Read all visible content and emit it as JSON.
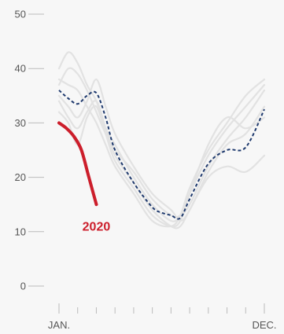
{
  "chart_data": {
    "type": "line",
    "title": "",
    "xlabel": "",
    "ylabel": "",
    "ylim": [
      0,
      50
    ],
    "y_ticks": [
      0,
      10,
      20,
      30,
      40,
      50
    ],
    "y_tick_labels": [
      "0",
      "10",
      "20",
      "30",
      "40",
      "50"
    ],
    "x_range": [
      1,
      12
    ],
    "x_ticks": [
      1,
      2,
      3,
      4,
      5,
      6,
      7,
      8,
      9,
      10,
      11,
      12
    ],
    "x_labels": [
      {
        "x": 1,
        "text": "JAN."
      },
      {
        "x": 12,
        "text": "DEC."
      }
    ],
    "grid": false,
    "legend": "none",
    "colors": {
      "background": "#f7f7f7",
      "background_lines": "#e2e2e2",
      "average": "#1f3a6e",
      "highlight": "#cc1e2b",
      "axis": "#bbbbbb",
      "text": "#555555"
    },
    "series": [
      {
        "role": "background",
        "x": [
          1,
          1.5,
          2,
          2.5,
          3,
          3.5,
          4,
          5,
          6,
          7,
          7.5,
          8,
          9,
          10,
          11,
          12
        ],
        "y": [
          40,
          43,
          41,
          37,
          34,
          29,
          26,
          20,
          15,
          12,
          13,
          17,
          24,
          29,
          33,
          37
        ]
      },
      {
        "role": "background",
        "x": [
          1,
          1.5,
          2,
          2.5,
          3,
          3.5,
          4,
          5,
          6,
          7,
          7.5,
          8,
          9,
          10,
          11,
          12
        ],
        "y": [
          37,
          40,
          39,
          36,
          32,
          28,
          25,
          21,
          16,
          13,
          13,
          15,
          22,
          27,
          31,
          36
        ]
      },
      {
        "role": "background",
        "x": [
          1,
          1.5,
          2,
          2.5,
          3,
          3.5,
          4,
          5,
          6,
          7,
          7.5,
          8,
          9,
          10,
          11,
          12
        ],
        "y": [
          35,
          33,
          31,
          34,
          38,
          33,
          28,
          22,
          17,
          14,
          12,
          14,
          21,
          26,
          28,
          33
        ]
      },
      {
        "role": "background",
        "x": [
          1,
          1.5,
          2,
          2.5,
          3,
          3.5,
          4,
          5,
          6,
          7,
          7.5,
          8,
          9,
          10,
          11,
          12
        ],
        "y": [
          34,
          31,
          29,
          32,
          34,
          29,
          24,
          19,
          14,
          11,
          11,
          14,
          20,
          22,
          21,
          24
        ]
      },
      {
        "role": "background",
        "x": [
          1,
          1.5,
          2,
          2.5,
          3,
          3.5,
          4,
          5,
          6,
          7,
          7.5,
          8,
          9,
          10,
          11,
          12
        ],
        "y": [
          32,
          30,
          26,
          31,
          33,
          28,
          23,
          18,
          13,
          11,
          12,
          17,
          26,
          31,
          29,
          31
        ]
      },
      {
        "role": "background",
        "x": [
          1,
          1.5,
          2,
          2.5,
          3,
          3.5,
          4,
          5,
          6,
          7,
          7.5,
          8,
          9,
          10,
          11,
          12
        ],
        "y": [
          38,
          37,
          36,
          33,
          30,
          26,
          22,
          17,
          12,
          11,
          13,
          18,
          25,
          30,
          35,
          38
        ]
      },
      {
        "role": "average",
        "style": "dashed",
        "x": [
          1,
          1.5,
          2,
          2.5,
          3,
          3.5,
          4,
          5,
          6,
          6.5,
          7,
          7.5,
          8,
          9,
          10,
          11,
          12
        ],
        "y": [
          36,
          34.5,
          33.5,
          35,
          35.5,
          31,
          25,
          19,
          14.5,
          13.5,
          13,
          12.5,
          16,
          22.5,
          25,
          25.5,
          32.5
        ]
      },
      {
        "role": "highlight",
        "label": "2020",
        "x": [
          1,
          1.4,
          1.8,
          2.2,
          2.6,
          3
        ],
        "y": [
          30,
          29,
          27.5,
          25,
          20,
          15
        ]
      }
    ],
    "annotations": [
      {
        "text": "2020",
        "x": 3,
        "y": 12.5
      }
    ]
  }
}
